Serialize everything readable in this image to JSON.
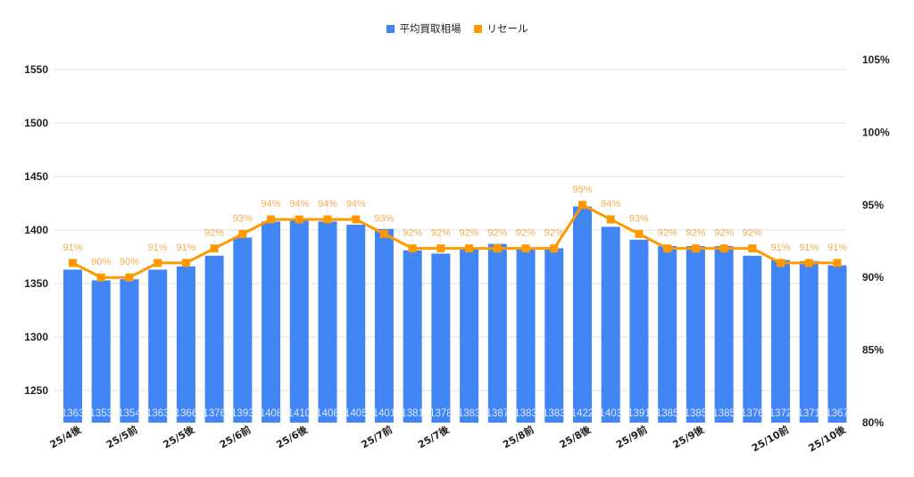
{
  "chart_data": {
    "type": "bar+line",
    "title": "",
    "legend": [
      {
        "name": "平均買取相場",
        "color": "#4285F4",
        "type": "bar"
      },
      {
        "name": "リセール",
        "color": "#FF9900",
        "type": "line"
      }
    ],
    "legend_position": "top",
    "categories": [
      "25/4後",
      "",
      "25/5前",
      "",
      "25/5後",
      "",
      "25/6前",
      "",
      "25/6後",
      "",
      "",
      "25/7前",
      "",
      "25/7後",
      "",
      "",
      "25/8前",
      "",
      "25/8後",
      "",
      "25/9前",
      "",
      "25/9後",
      "",
      "",
      "25/10前",
      "",
      "25/10後"
    ],
    "series": [
      {
        "name": "平均買取相場",
        "type": "bar",
        "axis": "left",
        "color": "#4285F4",
        "values": [
          1363,
          1353,
          1354,
          1363,
          1366,
          1376,
          1393,
          1408,
          1410,
          1408,
          1405,
          1401,
          1381,
          1378,
          1383,
          1387,
          1383,
          1383,
          1422,
          1403,
          1391,
          1385,
          1385,
          1385,
          1376,
          1372,
          1371,
          1367
        ]
      },
      {
        "name": "リセール",
        "type": "line",
        "axis": "right",
        "color": "#FF9900",
        "unit": "%",
        "values": [
          91,
          90,
          90,
          91,
          91,
          92,
          93,
          94,
          94,
          94,
          94,
          93,
          92,
          92,
          92,
          92,
          92,
          92,
          95,
          94,
          93,
          92,
          92,
          92,
          92,
          91,
          91,
          91
        ]
      }
    ],
    "left_axis": {
      "ticks": [
        1250,
        1300,
        1350,
        1400,
        1450,
        1500,
        1550
      ],
      "range": [
        1220,
        1550
      ]
    },
    "right_axis": {
      "ticks": [
        "80%",
        "85%",
        "90%",
        "95%",
        "100%",
        "105%"
      ],
      "range": [
        80,
        105
      ]
    },
    "xlabel": "",
    "ylabel": "",
    "grid": true
  }
}
